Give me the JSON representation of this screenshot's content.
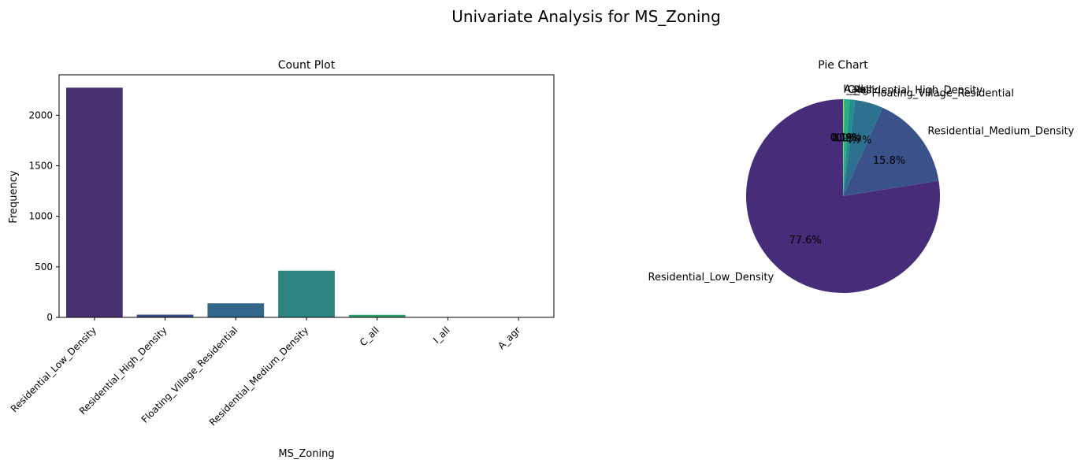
{
  "figure_title": "Univariate Analysis for MS_Zoning",
  "chart_data": [
    {
      "type": "bar",
      "title": "Count Plot",
      "xlabel": "MS_Zoning",
      "ylabel": "Frequency",
      "categories": [
        "Residential_Low_Density",
        "Residential_High_Density",
        "Floating_Village_Residential",
        "Residential_Medium_Density",
        "C_all",
        "I_all",
        "A_agr"
      ],
      "values": [
        2273,
        27,
        139,
        462,
        25,
        2,
        2
      ],
      "ylim": [
        0,
        2400
      ],
      "yticks": [
        0,
        500,
        1000,
        1500,
        2000
      ],
      "colors": [
        "#48336e",
        "#3a4e86",
        "#33678a",
        "#2d8480",
        "#2f9e71",
        "#35b779",
        "#5ec962"
      ],
      "grid": false
    },
    {
      "type": "pie",
      "title": "Pie Chart",
      "labels": [
        "Residential_Low_Density",
        "Residential_Medium_Density",
        "Floating_Village_Residential",
        "Residential_High_Density",
        "C_all",
        "A_agr",
        "I_all"
      ],
      "values": [
        77.6,
        15.8,
        4.7,
        0.9,
        0.9,
        0.1,
        0.1
      ],
      "autopct": [
        "77.6%",
        "15.8%",
        "4.7%",
        "0.9%",
        "0.9%",
        "0.1%",
        "0.1%"
      ],
      "colors": [
        "#472c7a",
        "#3b5189",
        "#2c718e",
        "#21908d",
        "#27ad81",
        "#5cc863",
        "#aadc32"
      ],
      "start_angle": 90,
      "direction": "counterclockwise"
    }
  ]
}
